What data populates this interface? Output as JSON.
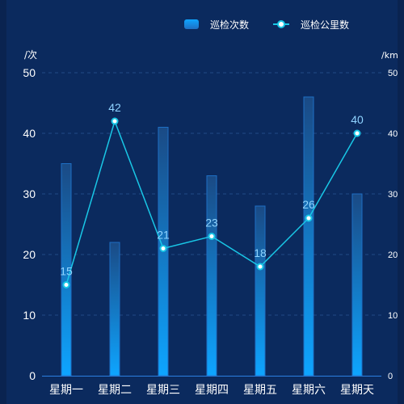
{
  "chart_data": {
    "type": "bar",
    "categories": [
      "星期一",
      "星期二",
      "星期三",
      "星期四",
      "星期五",
      "星期六",
      "星期天"
    ],
    "series": [
      {
        "name": "巡检次数",
        "type": "bar",
        "axis": "left",
        "values": [
          35,
          22,
          41,
          33,
          28,
          46,
          30
        ]
      },
      {
        "name": "巡检公里数",
        "type": "line",
        "axis": "right",
        "values": [
          15,
          42,
          21,
          23,
          18,
          26,
          40
        ],
        "data_labels": true
      }
    ],
    "y_left": {
      "unit": "/次",
      "range": [
        0,
        50
      ],
      "ticks": [
        0,
        10,
        20,
        30,
        40,
        50
      ]
    },
    "y_right": {
      "unit": "/km",
      "range": [
        0,
        50
      ],
      "ticks": [
        0,
        10,
        20,
        30,
        40,
        50
      ]
    },
    "grid": true,
    "legend_position": "top-right",
    "colors": {
      "background": "#0b2a5e",
      "bar_top": "#1a4a85",
      "bar_bottom": "#0ea5ff",
      "bar_edge": "#1e6fc4",
      "line": "#19c7e6",
      "point_fill": "#ffffff",
      "data_label": "#8fd3ff",
      "axis_text": "#ffffff",
      "grid": "#214a85"
    }
  }
}
